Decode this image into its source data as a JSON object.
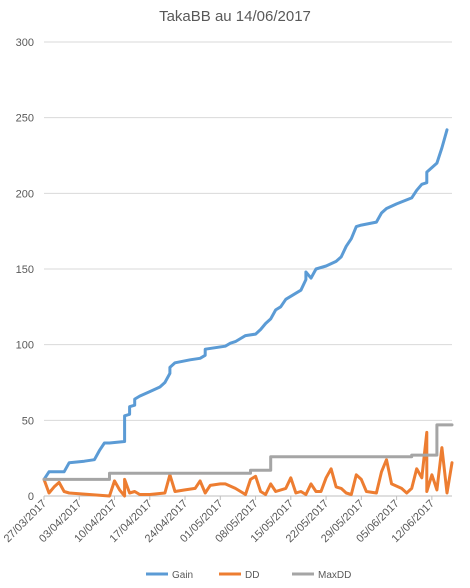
{
  "chart_data": {
    "type": "line",
    "title": "TakaBB au 14/06/2017",
    "xlabel": "",
    "ylabel": "",
    "ylim": [
      0,
      300
    ],
    "yticks": [
      0,
      50,
      100,
      150,
      200,
      250,
      300
    ],
    "xlim": [
      "2017-03-27",
      "2017-06-16"
    ],
    "xticks": [
      {
        "date": "2017-03-27",
        "label": "27/03/2017"
      },
      {
        "date": "2017-04-03",
        "label": "03/04/2017"
      },
      {
        "date": "2017-04-10",
        "label": "10/04/2017"
      },
      {
        "date": "2017-04-17",
        "label": "17/04/2017"
      },
      {
        "date": "2017-04-24",
        "label": "24/04/2017"
      },
      {
        "date": "2017-05-01",
        "label": "01/05/2017"
      },
      {
        "date": "2017-05-08",
        "label": "08/05/2017"
      },
      {
        "date": "2017-05-15",
        "label": "15/05/2017"
      },
      {
        "date": "2017-05-22",
        "label": "22/05/2017"
      },
      {
        "date": "2017-05-29",
        "label": "29/05/2017"
      },
      {
        "date": "2017-06-05",
        "label": "05/06/2017"
      },
      {
        "date": "2017-06-12",
        "label": "12/06/2017"
      }
    ],
    "grid": "horizontal",
    "legend": "bottom",
    "series": [
      {
        "name": "Gain",
        "color": "#5B9BD5",
        "points": [
          [
            "2017-03-27",
            11
          ],
          [
            "2017-03-28",
            16
          ],
          [
            "2017-03-29",
            16
          ],
          [
            "2017-03-30",
            16
          ],
          [
            "2017-03-31",
            16
          ],
          [
            "2017-04-01",
            22
          ],
          [
            "2017-04-04",
            23
          ],
          [
            "2017-04-06",
            24
          ],
          [
            "2017-04-07",
            30
          ],
          [
            "2017-04-08",
            35
          ],
          [
            "2017-04-09",
            35
          ],
          [
            "2017-04-12",
            36
          ],
          [
            "2017-04-12",
            53
          ],
          [
            "2017-04-13",
            54
          ],
          [
            "2017-04-13",
            59
          ],
          [
            "2017-04-14",
            60
          ],
          [
            "2017-04-14",
            64
          ],
          [
            "2017-04-15",
            66
          ],
          [
            "2017-04-17",
            69
          ],
          [
            "2017-04-19",
            72
          ],
          [
            "2017-04-20",
            75
          ],
          [
            "2017-04-21",
            81
          ],
          [
            "2017-04-21",
            85
          ],
          [
            "2017-04-22",
            88
          ],
          [
            "2017-04-25",
            90
          ],
          [
            "2017-04-27",
            91
          ],
          [
            "2017-04-28",
            93
          ],
          [
            "2017-04-28",
            97
          ],
          [
            "2017-04-30",
            98
          ],
          [
            "2017-05-02",
            99
          ],
          [
            "2017-05-03",
            101
          ],
          [
            "2017-05-04",
            102
          ],
          [
            "2017-05-05",
            104
          ],
          [
            "2017-05-06",
            106
          ],
          [
            "2017-05-08",
            107
          ],
          [
            "2017-05-09",
            110
          ],
          [
            "2017-05-10",
            114
          ],
          [
            "2017-05-11",
            117
          ],
          [
            "2017-05-12",
            123
          ],
          [
            "2017-05-13",
            125
          ],
          [
            "2017-05-14",
            130
          ],
          [
            "2017-05-16",
            134
          ],
          [
            "2017-05-17",
            136
          ],
          [
            "2017-05-18",
            143
          ],
          [
            "2017-05-18",
            148
          ],
          [
            "2017-05-19",
            144
          ],
          [
            "2017-05-20",
            150
          ],
          [
            "2017-05-22",
            152
          ],
          [
            "2017-05-24",
            155
          ],
          [
            "2017-05-25",
            158
          ],
          [
            "2017-05-26",
            165
          ],
          [
            "2017-05-27",
            170
          ],
          [
            "2017-05-28",
            178
          ],
          [
            "2017-05-29",
            179
          ],
          [
            "2017-06-01",
            181
          ],
          [
            "2017-06-02",
            187
          ],
          [
            "2017-06-03",
            190
          ],
          [
            "2017-06-05",
            193
          ],
          [
            "2017-06-08",
            197
          ],
          [
            "2017-06-09",
            202
          ],
          [
            "2017-06-10",
            206
          ],
          [
            "2017-06-11",
            207
          ],
          [
            "2017-06-11",
            214
          ],
          [
            "2017-06-13",
            220
          ],
          [
            "2017-06-14",
            230
          ],
          [
            "2017-06-15",
            242
          ]
        ]
      },
      {
        "name": "DD",
        "color": "#ED7D31",
        "points": [
          [
            "2017-03-27",
            11
          ],
          [
            "2017-03-28",
            2
          ],
          [
            "2017-03-29",
            6
          ],
          [
            "2017-03-30",
            9
          ],
          [
            "2017-03-31",
            3
          ],
          [
            "2017-04-01",
            2
          ],
          [
            "2017-04-09",
            0
          ],
          [
            "2017-04-10",
            10
          ],
          [
            "2017-04-11",
            4
          ],
          [
            "2017-04-12",
            0
          ],
          [
            "2017-04-12",
            11
          ],
          [
            "2017-04-13",
            2
          ],
          [
            "2017-04-14",
            3
          ],
          [
            "2017-04-15",
            1
          ],
          [
            "2017-04-17",
            1
          ],
          [
            "2017-04-20",
            2
          ],
          [
            "2017-04-21",
            14
          ],
          [
            "2017-04-22",
            3
          ],
          [
            "2017-04-24",
            4
          ],
          [
            "2017-04-26",
            5
          ],
          [
            "2017-04-27",
            10
          ],
          [
            "2017-04-28",
            2
          ],
          [
            "2017-04-29",
            7
          ],
          [
            "2017-05-01",
            8
          ],
          [
            "2017-05-02",
            8
          ],
          [
            "2017-05-04",
            5
          ],
          [
            "2017-05-06",
            1
          ],
          [
            "2017-05-07",
            11
          ],
          [
            "2017-05-08",
            13
          ],
          [
            "2017-05-09",
            3
          ],
          [
            "2017-05-10",
            1
          ],
          [
            "2017-05-11",
            8
          ],
          [
            "2017-05-12",
            3
          ],
          [
            "2017-05-14",
            5
          ],
          [
            "2017-05-15",
            12
          ],
          [
            "2017-05-16",
            2
          ],
          [
            "2017-05-17",
            3
          ],
          [
            "2017-05-18",
            1
          ],
          [
            "2017-05-19",
            8
          ],
          [
            "2017-05-20",
            3
          ],
          [
            "2017-05-21",
            3
          ],
          [
            "2017-05-22",
            12
          ],
          [
            "2017-05-23",
            18
          ],
          [
            "2017-05-24",
            6
          ],
          [
            "2017-05-25",
            5
          ],
          [
            "2017-05-26",
            2
          ],
          [
            "2017-05-27",
            1
          ],
          [
            "2017-05-28",
            14
          ],
          [
            "2017-05-29",
            11
          ],
          [
            "2017-05-30",
            3
          ],
          [
            "2017-06-01",
            2
          ],
          [
            "2017-06-02",
            16
          ],
          [
            "2017-06-03",
            24
          ],
          [
            "2017-06-04",
            8
          ],
          [
            "2017-06-06",
            5
          ],
          [
            "2017-06-07",
            2
          ],
          [
            "2017-06-08",
            5
          ],
          [
            "2017-06-09",
            18
          ],
          [
            "2017-06-10",
            12
          ],
          [
            "2017-06-11",
            42
          ],
          [
            "2017-06-11",
            3
          ],
          [
            "2017-06-12",
            14
          ],
          [
            "2017-06-13",
            4
          ],
          [
            "2017-06-14",
            32
          ],
          [
            "2017-06-15",
            2
          ],
          [
            "2017-06-16",
            22
          ]
        ]
      },
      {
        "name": "MaxDD",
        "color": "#A5A5A5",
        "points": [
          [
            "2017-03-27",
            11
          ],
          [
            "2017-04-09",
            11
          ],
          [
            "2017-04-09",
            15
          ],
          [
            "2017-05-07",
            15
          ],
          [
            "2017-05-07",
            17
          ],
          [
            "2017-05-11",
            17
          ],
          [
            "2017-05-11",
            26
          ],
          [
            "2017-06-08",
            26
          ],
          [
            "2017-06-08",
            27
          ],
          [
            "2017-06-13",
            27
          ],
          [
            "2017-06-13",
            47
          ],
          [
            "2017-06-16",
            47
          ]
        ]
      }
    ]
  }
}
